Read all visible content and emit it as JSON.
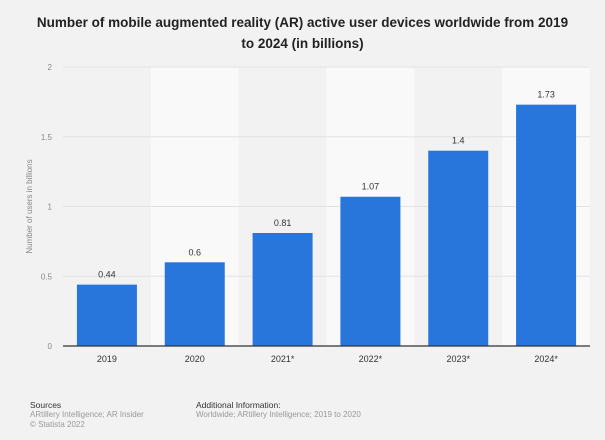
{
  "chart_data": {
    "type": "bar",
    "title": "Number of mobile augmented reality (AR) active user devices worldwide from 2019 to 2024 (in billions)",
    "categories": [
      "2019",
      "2020",
      "2021*",
      "2022*",
      "2023*",
      "2024*"
    ],
    "values": [
      0.44,
      0.6,
      0.81,
      1.07,
      1.4,
      1.73
    ],
    "data_labels": [
      "0.44",
      "0.6",
      "0.81",
      "1.07",
      "1.4",
      "1.73"
    ],
    "xlabel": "",
    "ylabel": "Number of users in billions",
    "ylim": [
      0,
      2
    ],
    "yticks": [
      "0",
      "0.5",
      "1",
      "1.5",
      "2"
    ],
    "grid": true,
    "bar_color": "#2875dc"
  },
  "footer": {
    "sources_heading": "Sources",
    "sources": "ARtillery Intelligence; AR Insider",
    "copyright": "© Statista 2022",
    "additional_heading": "Additional Information:",
    "additional": "Worldwide; ARtillery Intelligence; 2019 to 2020"
  }
}
